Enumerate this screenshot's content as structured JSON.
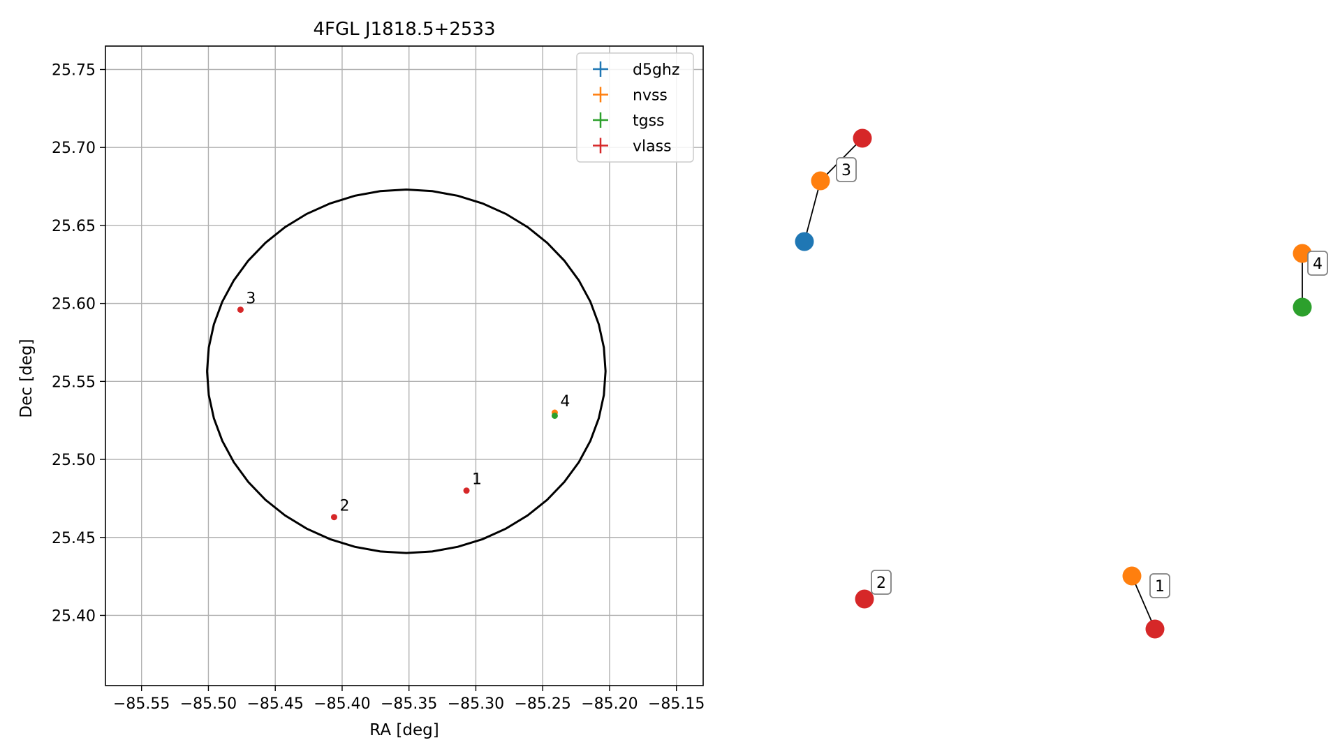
{
  "chart_data": [
    {
      "type": "scatter",
      "title": "4FGL J1818.5+2533",
      "xlabel": "RA [deg]",
      "ylabel": "Dec [deg]",
      "xlim": [
        -85.577,
        -85.13
      ],
      "ylim": [
        25.355,
        25.765
      ],
      "xticks": [
        -85.55,
        -85.5,
        -85.45,
        -85.4,
        -85.35,
        -85.3,
        -85.25,
        -85.2,
        -85.15
      ],
      "xtick_labels": [
        "−85.55",
        "−85.50",
        "−85.45",
        "−85.40",
        "−85.35",
        "−85.30",
        "−85.25",
        "−85.20",
        "−85.15"
      ],
      "yticks": [
        25.4,
        25.45,
        25.5,
        25.55,
        25.6,
        25.65,
        25.7,
        25.75
      ],
      "ytick_labels": [
        "25.40",
        "25.45",
        "25.50",
        "25.55",
        "25.60",
        "25.65",
        "25.70",
        "25.75"
      ],
      "grid": true,
      "legend": "top-right",
      "circle": {
        "center_ra": -85.352,
        "center_dec": 25.5565,
        "radius_ra": 0.149,
        "radius_dec": 0.1165
      },
      "series": [
        {
          "name": "d5ghz",
          "color": "#1f77b4",
          "points": []
        },
        {
          "name": "nvss",
          "color": "#ff7f0e",
          "points": [
            {
              "ra": -85.241,
              "dec": 25.53,
              "label": ""
            }
          ]
        },
        {
          "name": "tgss",
          "color": "#2ca02c",
          "points": [
            {
              "ra": -85.241,
              "dec": 25.528,
              "label": ""
            }
          ]
        },
        {
          "name": "vlass",
          "color": "#d62728",
          "points": [
            {
              "ra": -85.307,
              "dec": 25.48,
              "label": ""
            },
            {
              "ra": -85.406,
              "dec": 25.463,
              "label": ""
            },
            {
              "ra": -85.476,
              "dec": 25.596,
              "label": ""
            }
          ]
        }
      ],
      "annotations": [
        {
          "text": "1",
          "ra": -85.307,
          "dec": 25.48
        },
        {
          "text": "2",
          "ra": -85.406,
          "dec": 25.463
        },
        {
          "text": "3",
          "ra": -85.476,
          "dec": 25.596
        },
        {
          "text": "4",
          "ra": -85.241,
          "dec": 25.53
        }
      ]
    },
    {
      "type": "diagram",
      "nodes": [
        {
          "id": "g3-d5ghz",
          "survey": "d5ghz"
        },
        {
          "id": "g3-nvss",
          "survey": "nvss"
        },
        {
          "id": "g3-vlass",
          "survey": "vlass"
        },
        {
          "id": "g4-nvss",
          "survey": "nvss"
        },
        {
          "id": "g4-tgss",
          "survey": "tgss"
        },
        {
          "id": "g2-vlass",
          "survey": "vlass"
        },
        {
          "id": "g1-nvss",
          "survey": "nvss"
        },
        {
          "id": "g1-vlass",
          "survey": "vlass"
        }
      ],
      "edges": [
        [
          "g3-d5ghz",
          "g3-nvss"
        ],
        [
          "g3-nvss",
          "g3-vlass"
        ],
        [
          "g4-nvss",
          "g4-tgss"
        ],
        [
          "g1-nvss",
          "g1-vlass"
        ]
      ],
      "labels": [
        {
          "text": "3",
          "group": "g3"
        },
        {
          "text": "4",
          "group": "g4"
        },
        {
          "text": "2",
          "group": "g2"
        },
        {
          "text": "1",
          "group": "g1"
        }
      ]
    }
  ]
}
